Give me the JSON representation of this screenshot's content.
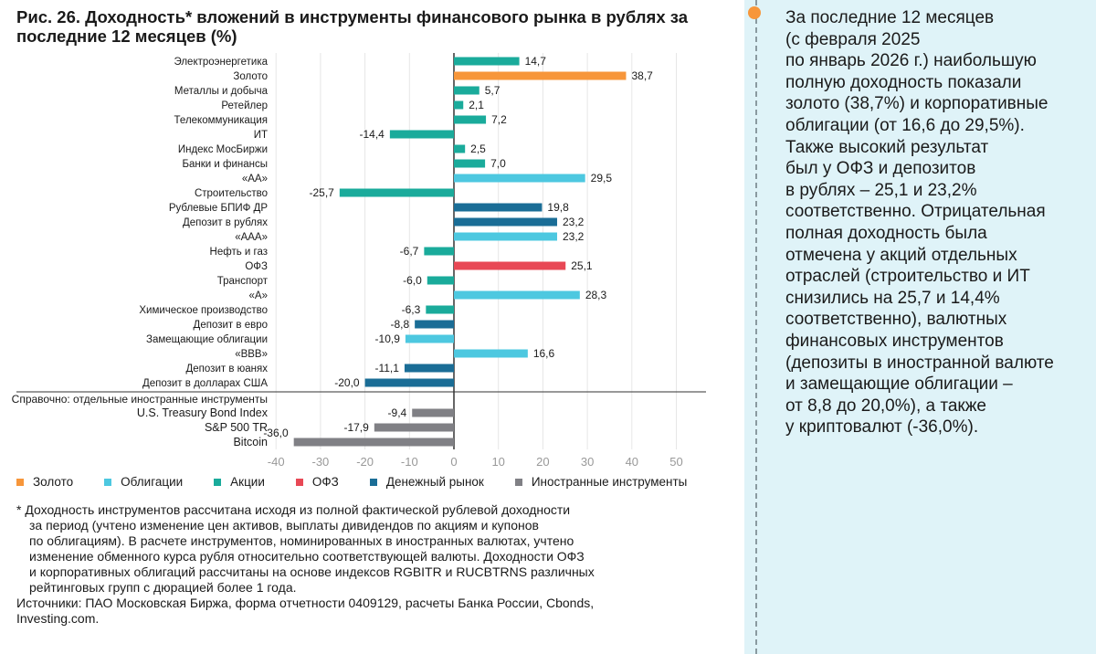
{
  "title": "Рис. 26. Доходность* вложений в инструменты финансового рынка в рублях за последние 12 месяцев (%)",
  "chart_data": {
    "type": "bar",
    "orientation": "horizontal",
    "title": "Рис. 26. Доходность* вложений в инструменты финансового рынка в рублях за последние 12 месяцев (%)",
    "xlim": [
      -40,
      50
    ],
    "xticks": [
      "-40",
      "-30",
      "-20",
      "-10",
      "0",
      "10",
      "20",
      "30",
      "40",
      "50"
    ],
    "grid": true,
    "legend_position": "bottom",
    "colors": {
      "gold": "#f7963a",
      "bonds": "#4dc8e0",
      "stocks": "#1aab9b",
      "ofz": "#e84855",
      "money": "#1a6d96",
      "foreign": "#808085"
    },
    "legend": [
      {
        "key": "gold",
        "label": "Золото"
      },
      {
        "key": "bonds",
        "label": "Облигации"
      },
      {
        "key": "stocks",
        "label": "Акции"
      },
      {
        "key": "ofz",
        "label": "ОФЗ"
      },
      {
        "key": "money",
        "label": "Денежный рынок"
      },
      {
        "key": "foreign",
        "label": "Иностранные инструменты"
      }
    ],
    "bars": [
      {
        "label": "Электроэнергетика",
        "value": 14.7,
        "text": "14,7",
        "group": "stocks"
      },
      {
        "label": "Золото",
        "value": 38.7,
        "text": "38,7",
        "group": "gold"
      },
      {
        "label": "Металлы и добыча",
        "value": 5.7,
        "text": "5,7",
        "group": "stocks"
      },
      {
        "label": "Ретейлер",
        "value": 2.1,
        "text": "2,1",
        "group": "stocks"
      },
      {
        "label": "Телекоммуникация",
        "value": 7.2,
        "text": "7,2",
        "group": "stocks"
      },
      {
        "label": "ИТ",
        "value": -14.4,
        "text": "-14,4",
        "group": "stocks"
      },
      {
        "label": "Индекс МосБиржи",
        "value": 2.5,
        "text": "2,5",
        "group": "stocks"
      },
      {
        "label": "Банки и финансы",
        "value": 7.0,
        "text": "7,0",
        "group": "stocks"
      },
      {
        "label": "«АА»",
        "value": 29.5,
        "text": "29,5",
        "group": "bonds"
      },
      {
        "label": "Строительство",
        "value": -25.7,
        "text": "-25,7",
        "group": "stocks"
      },
      {
        "label": "Рублевые БПИФ ДР",
        "value": 19.8,
        "text": "19,8",
        "group": "money"
      },
      {
        "label": "Депозит в рублях",
        "value": 23.2,
        "text": "23,2",
        "group": "money"
      },
      {
        "label": "«ААА»",
        "value": 23.2,
        "text": "23,2",
        "group": "bonds"
      },
      {
        "label": "Нефть и газ",
        "value": -6.7,
        "text": "-6,7",
        "group": "stocks"
      },
      {
        "label": "ОФЗ",
        "value": 25.1,
        "text": "25,1",
        "group": "ofz"
      },
      {
        "label": "Транспорт",
        "value": -6.0,
        "text": "-6,0",
        "group": "stocks"
      },
      {
        "label": "«А»",
        "value": 28.3,
        "text": "28,3",
        "group": "bonds"
      },
      {
        "label": "Химическое производство",
        "value": -6.3,
        "text": "-6,3",
        "group": "stocks"
      },
      {
        "label": "Депозит в евро",
        "value": -8.8,
        "text": "-8,8",
        "group": "money"
      },
      {
        "label": "Замещающие облигации",
        "value": -10.9,
        "text": "-10,9",
        "group": "bonds"
      },
      {
        "label": "«BBB»",
        "value": 16.6,
        "text": "16,6",
        "group": "bonds"
      },
      {
        "label": "Депозит в юанях",
        "value": -11.1,
        "text": "-11,1",
        "group": "money"
      },
      {
        "label": "Депозит в долларах США",
        "value": -20.0,
        "text": "-20,0",
        "group": "money"
      }
    ],
    "reference_header": "Справочно: отдельные иностранные инструменты",
    "reference_bars": [
      {
        "label": "U.S. Treasury Bond Index",
        "value": -9.4,
        "text": "-9,4",
        "group": "foreign"
      },
      {
        "label": "S&P 500 TR",
        "value": -17.9,
        "text": "-17,9",
        "group": "foreign"
      },
      {
        "label": "Bitcoin",
        "value": -36.0,
        "text": "-36,0",
        "group": "foreign"
      }
    ]
  },
  "notes": {
    "footnote": [
      "* Доходность инструментов рассчитана исходя из полной фактической рублевой доходности",
      "за период (учтено изменение цен активов, выплаты дивидендов по акциям и купонов",
      "по облигациям). В расчете инструментов, номинированных в иностранных валютах, учтено",
      "изменение обменного курса рубля относительно соответствующей валюты. Доходности ОФЗ",
      "и корпоративных облигаций рассчитаны на основе индексов RGBITR и RUCBTRNS различных",
      "рейтинговых групп с дюрацией более 1 года."
    ],
    "sources": [
      "Источники: ПАО Московская Биржа, форма отчетности 0409129, расчеты Банка России, Cbonds,",
      "Investing.com."
    ]
  },
  "sidebar": {
    "lines": [
      "За последние 12 месяцев",
      "(с февраля 2025",
      "по январь 2026 г.) наибольшую",
      "полную доходность показали",
      "золото (38,7%) и корпоративные",
      "облигации (от 16,6 до 29,5%).",
      "Также высокий результат",
      "был у ОФЗ и депозитов",
      "в рублях – 25,1 и 23,2%",
      "соответственно. Отрицательная",
      "полная доходность была",
      "отмечена у акций отдельных",
      "отраслей (строительство и ИТ",
      "снизились на 25,7 и 14,4%",
      "соответственно), валютных",
      "финансовых инструментов",
      "(депозиты в иностранной валюте",
      "и замещающие облигации –",
      "от 8,8 до 20,0%), а также",
      "у криптовалют (-36,0%)."
    ]
  }
}
